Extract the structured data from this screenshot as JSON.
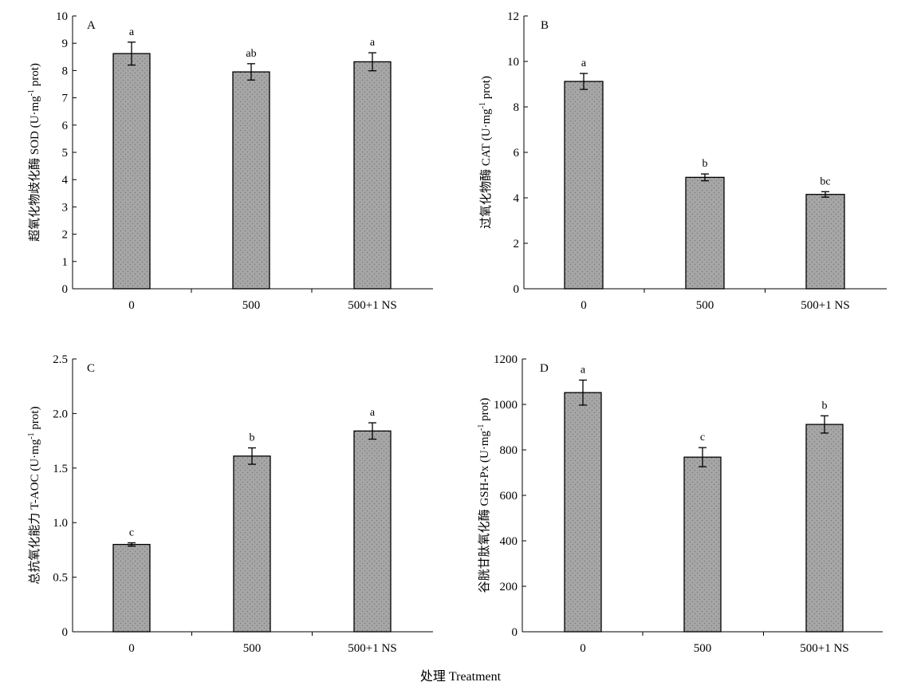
{
  "figure": {
    "shared_xlabel": "处理 Treatment",
    "bar_fill": "#a6a6a6",
    "bar_dot": "#7a7a7a"
  },
  "chart_data": [
    {
      "type": "bar",
      "panel": "A",
      "categories": [
        "0",
        "500",
        "500+1 NS"
      ],
      "values": [
        8.62,
        7.95,
        8.32
      ],
      "errors": [
        0.42,
        0.3,
        0.33
      ],
      "significance": [
        "a",
        "ab",
        "a"
      ],
      "ylabel_main": "超氧化物歧化酶 SOD (U·mg",
      "ylabel_sup": "-1",
      "ylabel_tail": " prot)",
      "ylim": [
        0,
        10
      ],
      "yticks": [
        "0",
        "1",
        "2",
        "3",
        "4",
        "5",
        "6",
        "7",
        "8",
        "9",
        "10"
      ],
      "ytick_values": [
        0,
        1,
        2,
        3,
        4,
        5,
        6,
        7,
        8,
        9,
        10
      ]
    },
    {
      "type": "bar",
      "panel": "B",
      "categories": [
        "0",
        "500",
        "500+1 NS"
      ],
      "values": [
        9.12,
        4.9,
        4.15
      ],
      "errors": [
        0.35,
        0.15,
        0.12
      ],
      "significance": [
        "a",
        "b",
        "bc"
      ],
      "ylabel_main": "过氧化物酶 CAT (U·mg",
      "ylabel_sup": "-1",
      "ylabel_tail": " prot)",
      "ylim": [
        0,
        12
      ],
      "yticks": [
        "0",
        "2",
        "4",
        "6",
        "8",
        "10",
        "12"
      ],
      "ytick_values": [
        0,
        2,
        4,
        6,
        8,
        10,
        12
      ]
    },
    {
      "type": "bar",
      "panel": "C",
      "categories": [
        "0",
        "500",
        "500+1 NS"
      ],
      "values": [
        0.8,
        1.61,
        1.84
      ],
      "errors": [
        0.015,
        0.075,
        0.075
      ],
      "significance": [
        "c",
        "b",
        "a"
      ],
      "ylabel_main": "总抗氧化能力 T-AOC (U·mg",
      "ylabel_sup": "-1",
      "ylabel_tail": " prot)",
      "ylim": [
        0,
        2.5
      ],
      "yticks": [
        "0",
        "0.5",
        "1.0",
        "1.5",
        "2.0",
        "2.5"
      ],
      "ytick_values": [
        0,
        0.5,
        1.0,
        1.5,
        2.0,
        2.5
      ]
    },
    {
      "type": "bar",
      "panel": "D",
      "categories": [
        "0",
        "500",
        "500+1 NS"
      ],
      "values": [
        1052,
        768,
        912
      ],
      "errors": [
        55,
        42,
        38
      ],
      "significance": [
        "a",
        "c",
        "b"
      ],
      "ylabel_main": "谷胱甘肽氧化酶 GSH-Px (U·mg",
      "ylabel_sup": "-1",
      "ylabel_tail": " prot)",
      "ylim": [
        0,
        1200
      ],
      "yticks": [
        "0",
        "200",
        "400",
        "600",
        "800",
        "1000",
        "1200"
      ],
      "ytick_values": [
        0,
        200,
        400,
        600,
        800,
        1000,
        1200
      ]
    }
  ]
}
